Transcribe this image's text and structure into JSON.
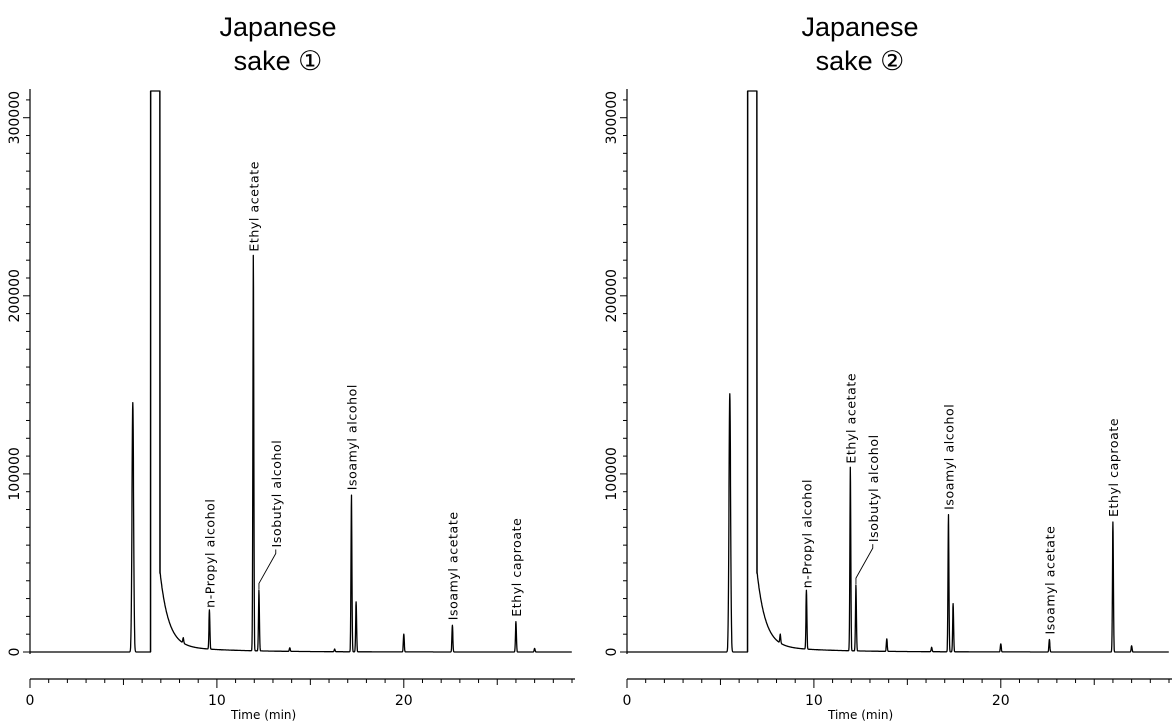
{
  "chart_data": [
    {
      "type": "line",
      "title": "Japanese\nsake ①",
      "xlabel": "Time (min)",
      "ylabel": "",
      "xlim": [
        0,
        29
      ],
      "ylim": [
        0,
        315000
      ],
      "x_ticks": [
        "0",
        "10",
        "20"
      ],
      "y_ticks": [
        "0",
        "100000",
        "200000",
        "300000"
      ],
      "clipped_peak": {
        "x": 6.7,
        "note": "off-scale solvent peak"
      },
      "peaks": [
        {
          "x": 5.5,
          "y": 140000,
          "label": ""
        },
        {
          "x": 8.2,
          "y": 3000,
          "label": ""
        },
        {
          "x": 9.6,
          "y": 22000,
          "label": "n-Propyl alcohol"
        },
        {
          "x": 11.95,
          "y": 222000,
          "label": "Ethyl acetate"
        },
        {
          "x": 12.25,
          "y": 34000,
          "label": "Isobutyl alcohol"
        },
        {
          "x": 13.9,
          "y": 2000,
          "label": ""
        },
        {
          "x": 16.3,
          "y": 1500,
          "label": ""
        },
        {
          "x": 17.2,
          "y": 88000,
          "label": "Isoamyl alcohol"
        },
        {
          "x": 17.45,
          "y": 28000,
          "label": ""
        },
        {
          "x": 20.0,
          "y": 10000,
          "label": ""
        },
        {
          "x": 22.6,
          "y": 15000,
          "label": "Isoamyl acetate"
        },
        {
          "x": 26.0,
          "y": 17000,
          "label": "Ethyl caproate"
        },
        {
          "x": 27.0,
          "y": 2000,
          "label": ""
        }
      ]
    },
    {
      "type": "line",
      "title": "Japanese\nsake ②",
      "xlabel": "Time (min)",
      "ylabel": "",
      "xlim": [
        0,
        29
      ],
      "ylim": [
        0,
        315000
      ],
      "x_ticks": [
        "0",
        "10",
        "20"
      ],
      "y_ticks": [
        "0",
        "100000",
        "200000",
        "300000"
      ],
      "clipped_peak": {
        "x": 6.7,
        "note": "off-scale solvent peak"
      },
      "peaks": [
        {
          "x": 5.5,
          "y": 145000,
          "label": ""
        },
        {
          "x": 8.2,
          "y": 5000,
          "label": ""
        },
        {
          "x": 9.6,
          "y": 33000,
          "label": "n-Propyl alcohol"
        },
        {
          "x": 11.95,
          "y": 103000,
          "label": "Ethyl acetate"
        },
        {
          "x": 12.25,
          "y": 37000,
          "label": "Isobutyl alcohol"
        },
        {
          "x": 13.9,
          "y": 7000,
          "label": ""
        },
        {
          "x": 16.3,
          "y": 2500,
          "label": ""
        },
        {
          "x": 17.2,
          "y": 77000,
          "label": "Isoamyl alcohol"
        },
        {
          "x": 17.45,
          "y": 27000,
          "label": ""
        },
        {
          "x": 20.0,
          "y": 4500,
          "label": ""
        },
        {
          "x": 22.6,
          "y": 7000,
          "label": "Isoamyl acetate"
        },
        {
          "x": 26.0,
          "y": 73000,
          "label": "Ethyl caproate"
        },
        {
          "x": 27.0,
          "y": 3500,
          "label": ""
        }
      ]
    }
  ]
}
